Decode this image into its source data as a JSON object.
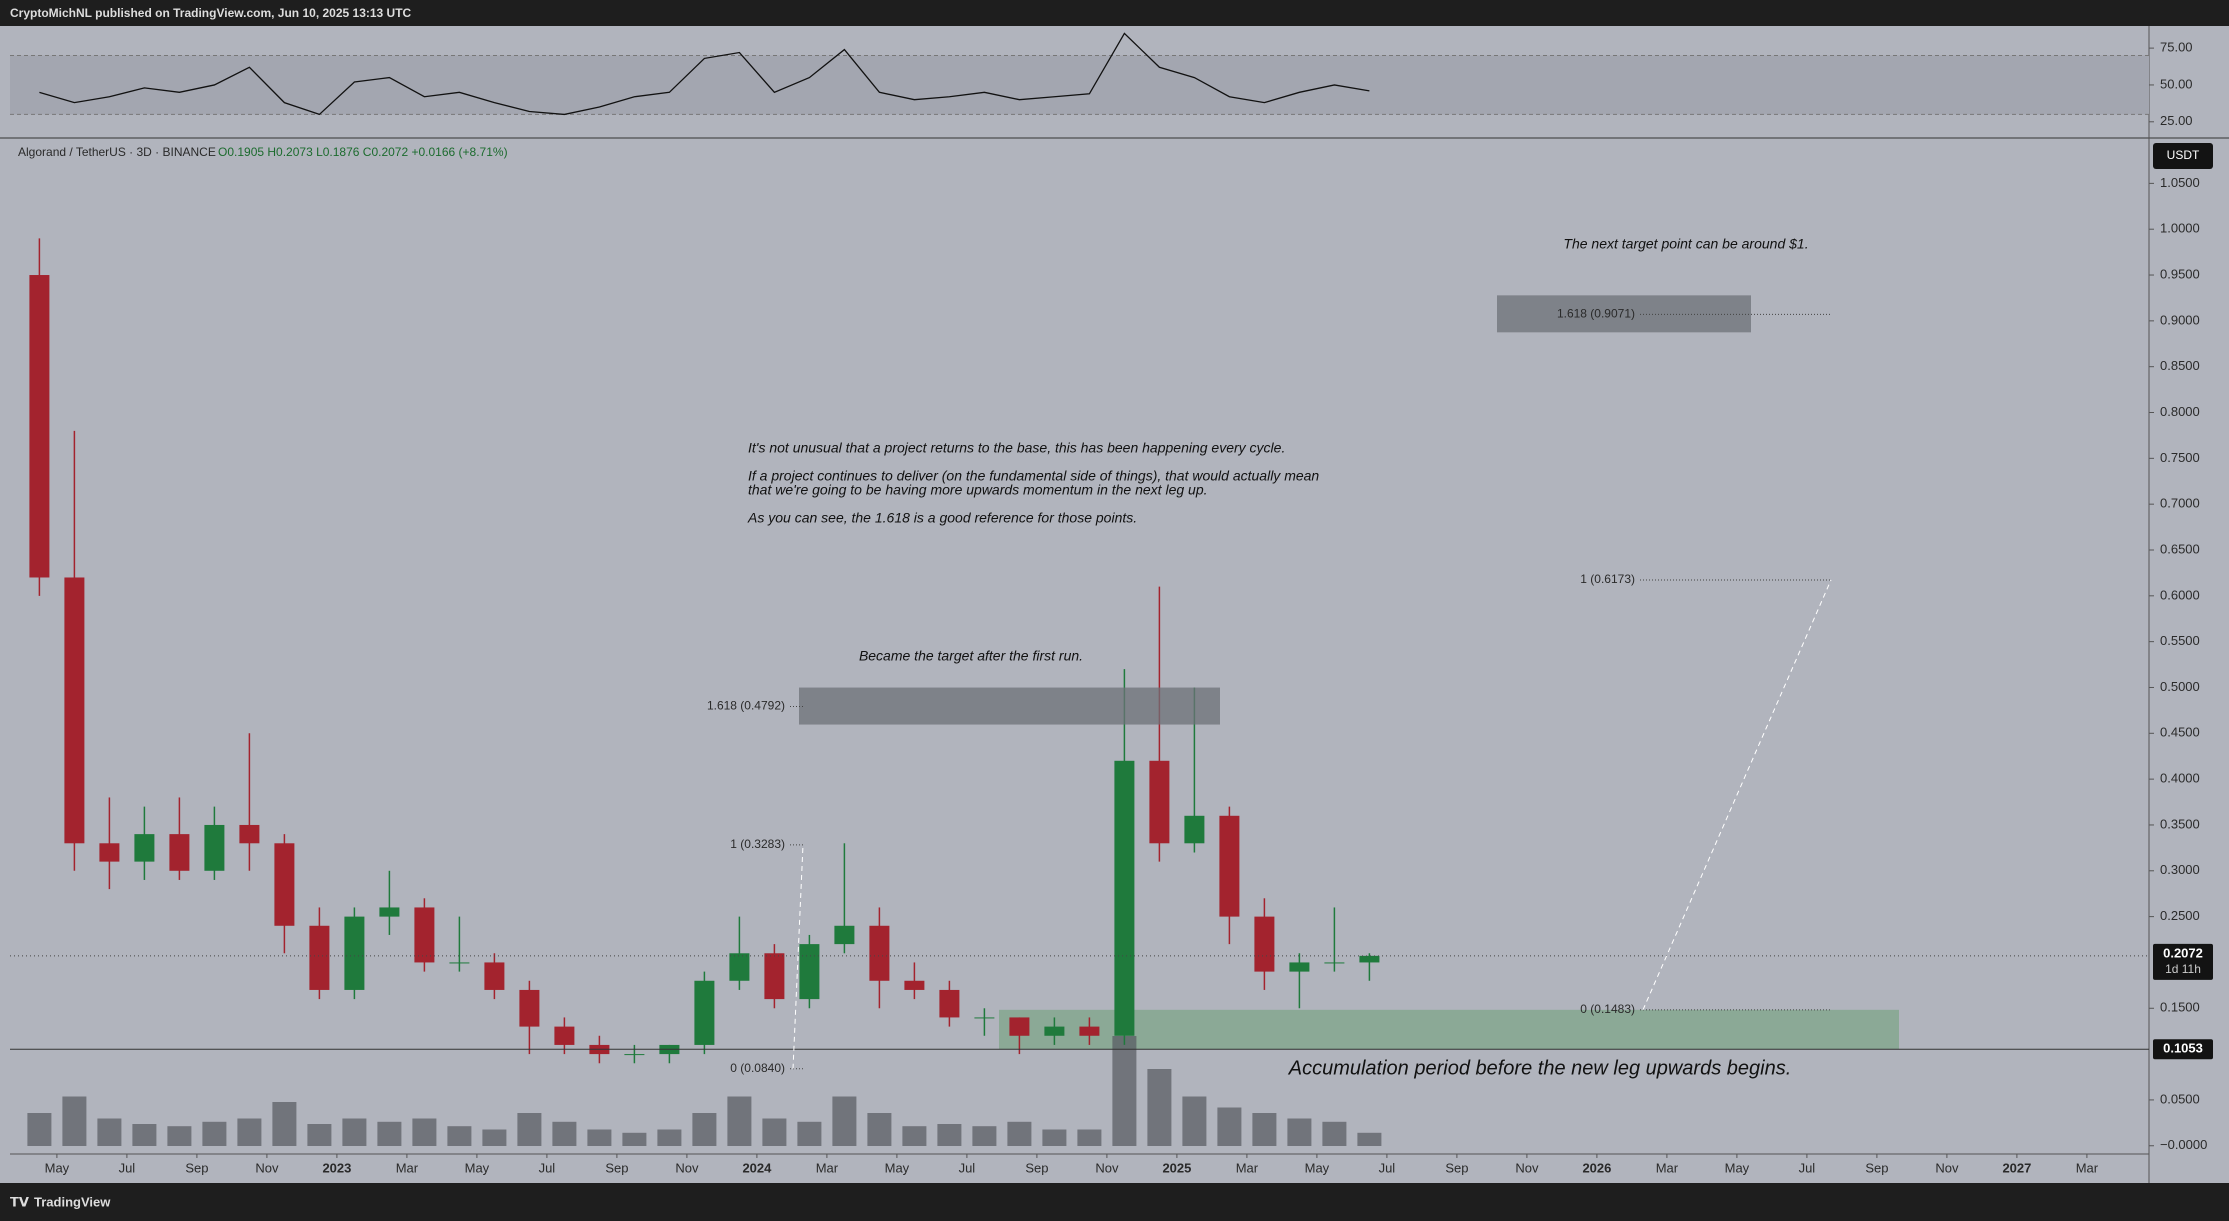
{
  "topbar": "CryptoMichNL published on TradingView.com, Jun 10, 2025 13:13 UTC",
  "footer": "TradingView",
  "header": {
    "symbol": "Algorand / TetherUS · 3D · BINANCE",
    "ohlc": "O0.1905 H0.2073 L0.1876 C0.2072 +0.0166 (+8.71%)"
  },
  "chart_data": {
    "type": "candlestick",
    "currency": "USDT",
    "x": [
      "2022-04",
      "2022-05",
      "2022-06",
      "2022-07",
      "2022-08",
      "2022-09",
      "2022-10",
      "2022-11",
      "2022-12",
      "2023-01",
      "2023-02",
      "2023-03",
      "2023-04",
      "2023-05",
      "2023-06",
      "2023-07",
      "2023-08",
      "2023-09",
      "2023-10",
      "2023-11",
      "2023-12",
      "2024-01",
      "2024-02",
      "2024-03",
      "2024-04",
      "2024-05",
      "2024-06",
      "2024-07",
      "2024-08",
      "2024-09",
      "2024-10",
      "2024-11",
      "2024-12",
      "2025-01",
      "2025-02",
      "2025-03",
      "2025-04",
      "2025-05",
      "2025-06"
    ],
    "open": [
      0.95,
      0.62,
      0.33,
      0.31,
      0.34,
      0.3,
      0.35,
      0.33,
      0.24,
      0.17,
      0.25,
      0.26,
      0.2,
      0.2,
      0.17,
      0.13,
      0.11,
      0.1,
      0.1,
      0.11,
      0.18,
      0.21,
      0.16,
      0.22,
      0.24,
      0.18,
      0.17,
      0.14,
      0.14,
      0.12,
      0.13,
      0.12,
      0.42,
      0.33,
      0.36,
      0.25,
      0.19,
      0.2,
      0.2
    ],
    "high": [
      0.99,
      0.78,
      0.38,
      0.37,
      0.38,
      0.37,
      0.45,
      0.34,
      0.26,
      0.26,
      0.3,
      0.27,
      0.25,
      0.21,
      0.18,
      0.14,
      0.12,
      0.11,
      0.11,
      0.19,
      0.25,
      0.22,
      0.23,
      0.33,
      0.26,
      0.2,
      0.18,
      0.15,
      0.14,
      0.14,
      0.14,
      0.52,
      0.61,
      0.5,
      0.37,
      0.27,
      0.21,
      0.26,
      0.21
    ],
    "low": [
      0.6,
      0.3,
      0.28,
      0.29,
      0.29,
      0.29,
      0.3,
      0.21,
      0.16,
      0.16,
      0.23,
      0.19,
      0.19,
      0.16,
      0.1,
      0.1,
      0.09,
      0.09,
      0.09,
      0.1,
      0.17,
      0.15,
      0.15,
      0.21,
      0.15,
      0.16,
      0.13,
      0.12,
      0.1,
      0.11,
      0.11,
      0.11,
      0.31,
      0.32,
      0.22,
      0.17,
      0.15,
      0.19,
      0.18
    ],
    "close": [
      0.62,
      0.33,
      0.31,
      0.34,
      0.3,
      0.35,
      0.33,
      0.24,
      0.17,
      0.25,
      0.26,
      0.2,
      0.2,
      0.17,
      0.13,
      0.11,
      0.1,
      0.1,
      0.11,
      0.18,
      0.21,
      0.16,
      0.22,
      0.24,
      0.18,
      0.17,
      0.14,
      0.14,
      0.12,
      0.13,
      0.12,
      0.42,
      0.33,
      0.36,
      0.25,
      0.19,
      0.2,
      0.2,
      0.2072
    ],
    "up_color": "#1f7a3c",
    "down_color": "#a3232e",
    "volume": [
      30,
      45,
      25,
      20,
      18,
      22,
      25,
      40,
      20,
      25,
      22,
      25,
      18,
      15,
      30,
      22,
      15,
      12,
      15,
      30,
      45,
      25,
      22,
      45,
      30,
      18,
      20,
      18,
      22,
      15,
      15,
      100,
      70,
      45,
      35,
      30,
      25,
      22,
      12
    ],
    "vlim": [
      0,
      100
    ],
    "volume_color": "#55585f",
    "ylim": [
      -0.009,
      1.0995
    ],
    "yticks": [
      {
        "value": 0,
        "label": "−0.0000"
      },
      {
        "value": 0.05,
        "label": "0.0500"
      },
      {
        "value": 0.15,
        "label": "0.1500"
      },
      {
        "value": 0.25,
        "label": "0.2500"
      },
      {
        "value": 0.3,
        "label": "0.3000"
      },
      {
        "value": 0.35,
        "label": "0.3500"
      },
      {
        "value": 0.4,
        "label": "0.4000"
      },
      {
        "value": 0.45,
        "label": "0.4500"
      },
      {
        "value": 0.5,
        "label": "0.5000"
      },
      {
        "value": 0.55,
        "label": "0.5500"
      },
      {
        "value": 0.6,
        "label": "0.6000"
      },
      {
        "value": 0.65,
        "label": "0.6500"
      },
      {
        "value": 0.7,
        "label": "0.7000"
      },
      {
        "value": 0.75,
        "label": "0.7500"
      },
      {
        "value": 0.8,
        "label": "0.8000"
      },
      {
        "value": 0.85,
        "label": "0.8500"
      },
      {
        "value": 0.9,
        "label": "0.9000"
      },
      {
        "value": 0.95,
        "label": "0.9500"
      },
      {
        "value": 1,
        "label": "1.0000"
      },
      {
        "value": 1.05,
        "label": "1.0500"
      }
    ],
    "xticks": [
      {
        "value": "2022-05",
        "label": "May"
      },
      {
        "value": "2022-07",
        "label": "Jul"
      },
      {
        "value": "2022-09",
        "label": "Sep"
      },
      {
        "value": "2022-11",
        "label": "Nov"
      },
      {
        "value": "2023-01",
        "label": "2023"
      },
      {
        "value": "2023-03",
        "label": "Mar"
      },
      {
        "value": "2023-05",
        "label": "May"
      },
      {
        "value": "2023-07",
        "label": "Jul"
      },
      {
        "value": "2023-09",
        "label": "Sep"
      },
      {
        "value": "2023-11",
        "label": "Nov"
      },
      {
        "value": "2024-01",
        "label": "2024"
      },
      {
        "value": "2024-03",
        "label": "Mar"
      },
      {
        "value": "2024-05",
        "label": "May"
      },
      {
        "value": "2024-07",
        "label": "Jul"
      },
      {
        "value": "2024-09",
        "label": "Sep"
      },
      {
        "value": "2024-11",
        "label": "Nov"
      },
      {
        "value": "2025-01",
        "label": "2025"
      },
      {
        "value": "2025-03",
        "label": "Mar"
      },
      {
        "value": "2025-05",
        "label": "May"
      },
      {
        "value": "2025-07",
        "label": "Jul"
      },
      {
        "value": "2025-09",
        "label": "Sep"
      },
      {
        "value": "2025-11",
        "label": "Nov"
      },
      {
        "value": "2026-01",
        "label": "2026"
      },
      {
        "value": "2026-03",
        "label": "Mar"
      },
      {
        "value": "2026-05",
        "label": "May"
      },
      {
        "value": "2026-07",
        "label": "Jul"
      },
      {
        "value": "2026-09",
        "label": "Sep"
      },
      {
        "value": "2026-11",
        "label": "Nov"
      },
      {
        "value": "2027-01",
        "label": "2027"
      },
      {
        "value": "2027-03",
        "label": "Mar"
      }
    ],
    "last_price": 0.2072,
    "countdown": "1d 11h",
    "support": 0.1053,
    "fib_left": [
      {
        "label": "0 (0.0840)",
        "price": 0.084
      },
      {
        "label": "1 (0.3283)",
        "price": 0.3283
      },
      {
        "label": "1.618 (0.4792)",
        "price": 0.4792
      }
    ],
    "fib_right": [
      {
        "label": "0 (0.1483)",
        "price": 0.1483
      },
      {
        "label": "1 (0.6173)",
        "price": 0.6173
      },
      {
        "label": "1.618 (0.9071)",
        "price": 0.9071
      }
    ],
    "notes": [
      "The next target point can be around $1.",
      "It's not unusual that a project returns to the base, this has been happening every cycle.",
      "If a project continues to deliver (on the fundamental side of things), that would actually mean",
      "that we're going to be having more upwards momentum in the next leg up.",
      "As you can see, the 1.618 is a good reference for those points.",
      "Became the target after the first run.",
      "Accumulation period before the new leg upwards begins."
    ],
    "rsi": {
      "values": [
        45,
        38,
        42,
        48,
        45,
        50,
        62,
        38,
        30,
        52,
        55,
        42,
        45,
        38,
        32,
        30,
        35,
        42,
        45,
        68,
        72,
        45,
        55,
        74,
        45,
        40,
        42,
        45,
        40,
        42,
        44,
        85,
        62,
        55,
        42,
        38,
        45,
        50,
        46
      ],
      "ylim": [
        14,
        90
      ],
      "yticks": [
        {
          "value": 75,
          "label": "75.00"
        },
        {
          "value": 50,
          "label": "50.00"
        },
        {
          "value": 25,
          "label": "25.00"
        }
      ],
      "band": [
        30,
        70
      ],
      "color": "#111111"
    }
  }
}
